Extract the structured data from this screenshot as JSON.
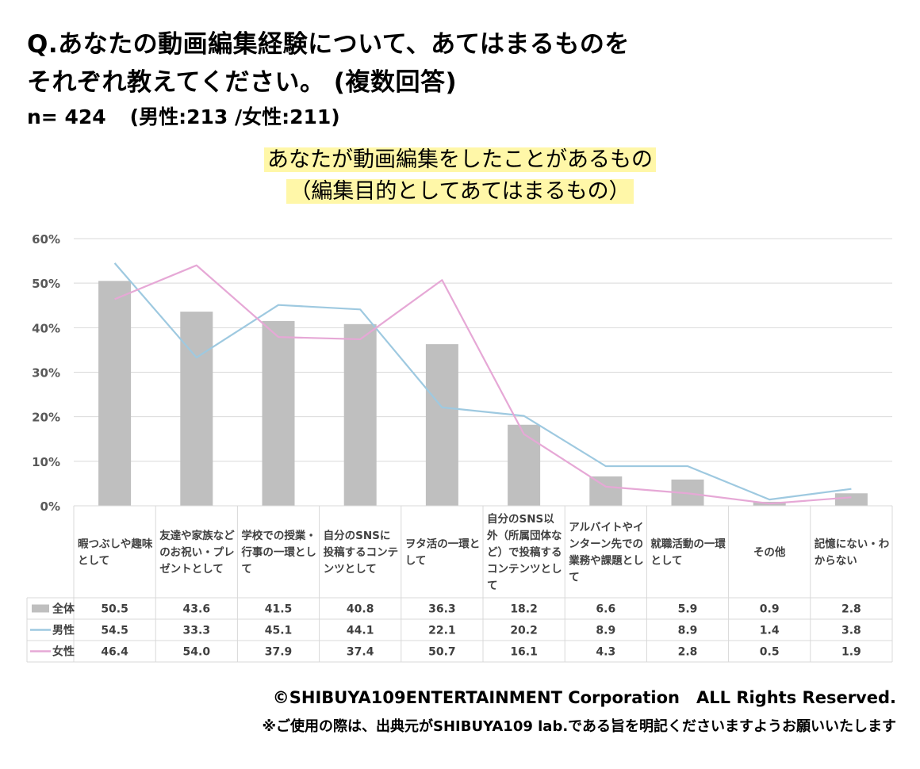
{
  "header": {
    "title_line1": "Q.あなたの動画編集経験について、あてはまるものを",
    "title_line2": "それぞれ教えてください。 (複数回答)",
    "sample_total": "n= 424",
    "sample_breakdown": "(男性:213 /女性:211)"
  },
  "chart_data": {
    "type": "bar",
    "title_line1": "あなたが動画編集をしたことがあるもの",
    "title_line2": "（編集目的としてあてはまるもの）",
    "categories": [
      [
        "暇つぶしや趣味",
        "として"
      ],
      [
        "友達や家族など",
        "のお祝い・プレ",
        "ゼントとして"
      ],
      [
        "学校での授業・",
        "行事の一環とし",
        "て"
      ],
      [
        "自分のSNSに",
        "投稿するコンテ",
        "ンツとして"
      ],
      [
        "ヲタ活の一環と",
        "して"
      ],
      [
        "自分のSNS以",
        "外（所属団体な",
        "ど）で投稿する",
        "コンテンツとし",
        "て"
      ],
      [
        "アルバイトやイ",
        "ンターン先での",
        "業務や課題とし",
        "て"
      ],
      [
        "就職活動の一環",
        "として"
      ],
      [
        "その他"
      ],
      [
        "記憶にない・わ",
        "からない"
      ]
    ],
    "y_ticks": [
      "0%",
      "10%",
      "20%",
      "30%",
      "40%",
      "50%",
      "60%"
    ],
    "ylim": [
      0,
      60
    ],
    "grid": true,
    "series": [
      {
        "name": "全体",
        "kind": "bar",
        "color": "#bfbfbf",
        "values": [
          50.5,
          43.6,
          41.5,
          40.8,
          36.3,
          18.2,
          6.6,
          5.9,
          0.9,
          2.8
        ],
        "labels": [
          "50.5",
          "43.6",
          "41.5",
          "40.8",
          "36.3",
          "18.2",
          "6.6",
          "5.9",
          "0.9",
          "2.8"
        ]
      },
      {
        "name": "男性",
        "kind": "line",
        "color": "#9ec9e0",
        "values": [
          54.5,
          33.3,
          45.1,
          44.1,
          22.1,
          20.2,
          8.9,
          8.9,
          1.4,
          3.8
        ],
        "labels": [
          "54.5",
          "33.3",
          "45.1",
          "44.1",
          "22.1",
          "20.2",
          "8.9",
          "8.9",
          "1.4",
          "3.8"
        ]
      },
      {
        "name": "女性",
        "kind": "line",
        "color": "#e6a8d6",
        "values": [
          46.4,
          54.0,
          37.9,
          37.4,
          50.7,
          16.1,
          4.3,
          2.8,
          0.5,
          1.9
        ],
        "labels": [
          "46.4",
          "54.0",
          "37.9",
          "37.4",
          "50.7",
          "16.1",
          "4.3",
          "2.8",
          "0.5",
          "1.9"
        ]
      }
    ]
  },
  "footer": {
    "copyright": "©SHIBUYA109ENTERTAINMENT Corporation　ALL Rights Reserved.",
    "note": "※ご使用の際は、出典元がSHIBUYA109 lab.である旨を明記くださいますようお願いいたします"
  }
}
